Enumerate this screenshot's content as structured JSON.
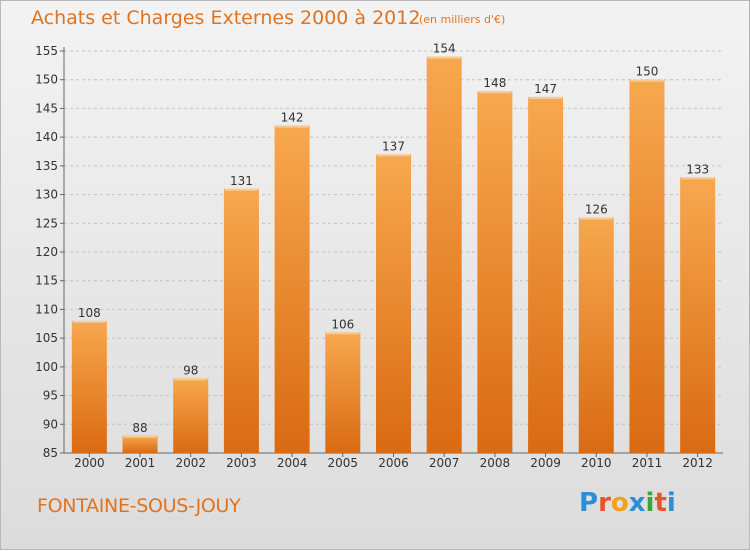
{
  "header": {
    "title": "Achats et Charges Externes 2000 à 2012",
    "subtitle": "(en milliers d'€)"
  },
  "footer": {
    "place": "FONTAINE-SOUS-JOUY",
    "logo_letters": [
      "P",
      "r",
      "o",
      "x",
      "i",
      "t",
      "i"
    ],
    "logo_colors": [
      "#2b8fd6",
      "#e8542c",
      "#f2a21a",
      "#2b8fd6",
      "#3aa53a",
      "#e8542c",
      "#2b8fd6"
    ]
  },
  "chart_data": {
    "type": "bar",
    "categories": [
      "2000",
      "2001",
      "2002",
      "2003",
      "2004",
      "2005",
      "2006",
      "2007",
      "2008",
      "2009",
      "2010",
      "2011",
      "2012"
    ],
    "values": [
      108,
      88,
      98,
      131,
      142,
      106,
      137,
      154,
      148,
      147,
      126,
      150,
      133
    ],
    "ylim": [
      85,
      155
    ],
    "yticks": [
      85,
      90,
      95,
      100,
      105,
      110,
      115,
      120,
      125,
      130,
      135,
      140,
      145,
      150,
      155
    ],
    "grid": true,
    "bar_color_top": "#f7a84f",
    "bar_color_bottom": "#d96a12"
  }
}
